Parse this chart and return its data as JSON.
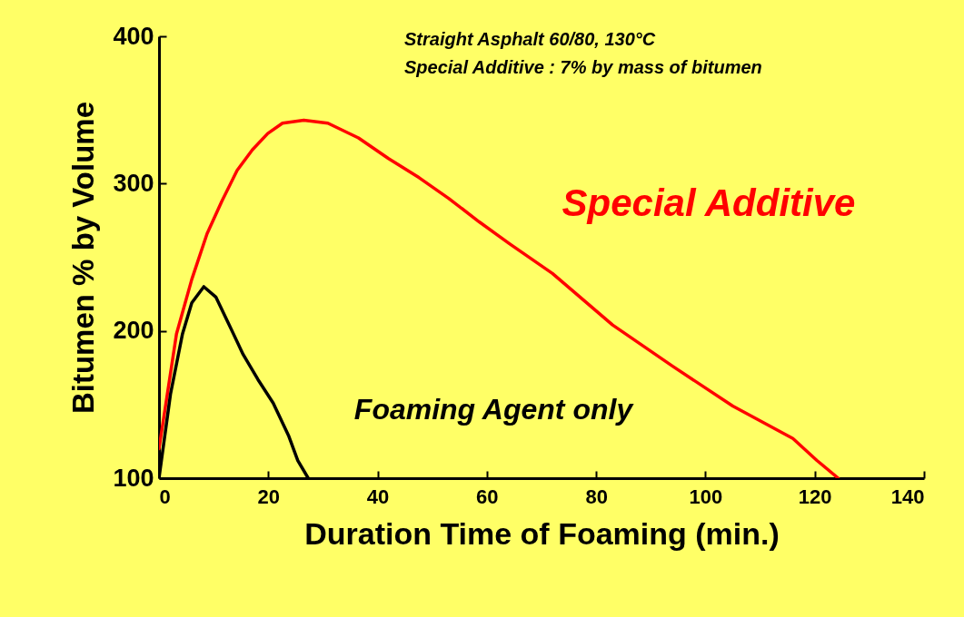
{
  "chart_data": {
    "type": "line",
    "xlabel": "Duration Time of Foaming  (min.)",
    "ylabel": "Bitumen % by Volume",
    "annotations": [
      "Straight Asphalt 60/80, 130°C",
      "Special Additive : 7% by mass of bitumen"
    ],
    "xlim": [
      0,
      140
    ],
    "xticks": [
      0,
      20,
      40,
      60,
      80,
      100,
      120,
      140
    ],
    "ylim": [
      100,
      400
    ],
    "yticks": [
      100,
      200,
      300,
      400
    ],
    "series": [
      {
        "name": "Special Additive",
        "color": "#ff0000",
        "x": [
          0,
          3.2,
          6,
          8.8,
          11.5,
          14.3,
          17.1,
          19.9,
          22.6,
          26.5,
          30.9,
          36.5,
          42,
          47.6,
          53,
          58.6,
          64.2,
          72,
          83,
          94,
          105,
          116,
          120.4,
          124.3
        ],
        "values": [
          120,
          198,
          235,
          266,
          288,
          309,
          323,
          334,
          341,
          343,
          341,
          331,
          317,
          304,
          290,
          274,
          259,
          239,
          204,
          176,
          149,
          127,
          112,
          100
        ]
      },
      {
        "name": "Foaming Agent only",
        "color": "#000000",
        "x": [
          0,
          2.1,
          4.3,
          6,
          8.2,
          10.4,
          12.6,
          15.4,
          18.1,
          20.9,
          23.7,
          25.4,
          27.3
        ],
        "values": [
          100,
          157,
          198,
          219,
          230,
          223,
          206,
          184,
          167,
          151,
          129,
          112,
          100
        ]
      }
    ]
  }
}
